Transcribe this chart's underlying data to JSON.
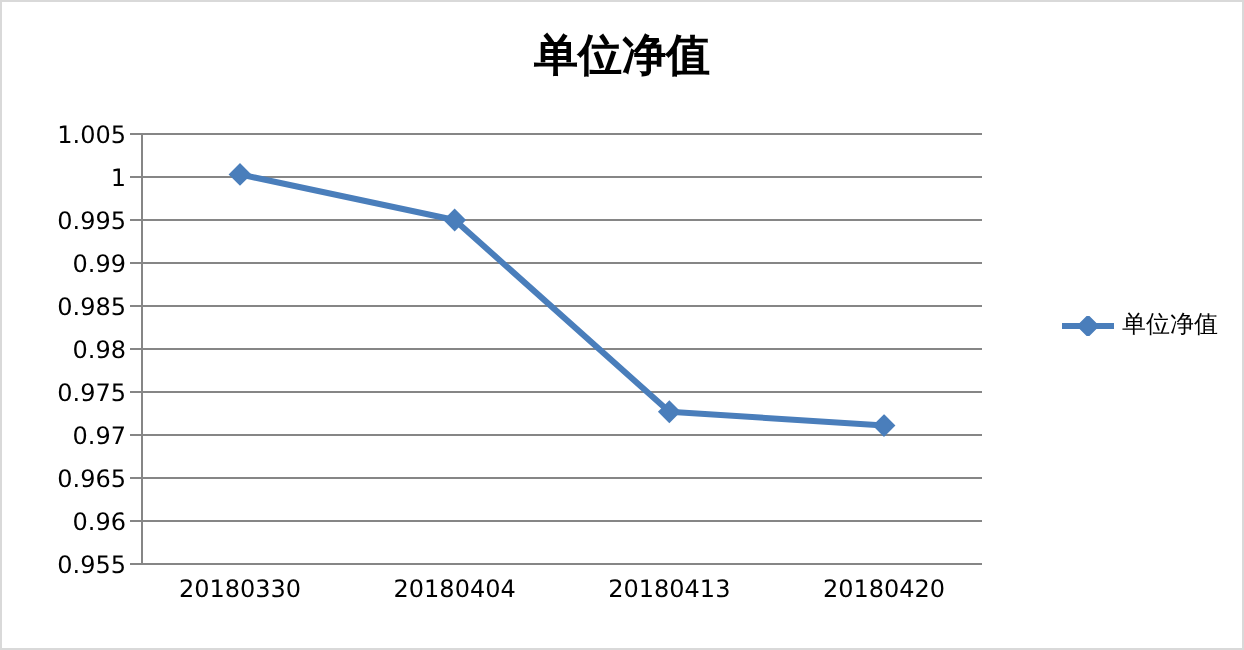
{
  "chart_data": {
    "type": "line",
    "title": "单位净值",
    "categories": [
      "20180330",
      "20180404",
      "20180413",
      "20180420"
    ],
    "series": [
      {
        "name": "单位净值",
        "color": "#4a7ebb",
        "values": [
          1.0003,
          0.995,
          0.9727,
          0.9711
        ]
      }
    ],
    "ylim": [
      0.955,
      1.005
    ],
    "yticks": [
      0.955,
      0.96,
      0.965,
      0.97,
      0.975,
      0.98,
      0.985,
      0.99,
      0.995,
      1,
      1.005
    ],
    "grid": "y",
    "legend": "right",
    "marker": "diamond",
    "line_style": "solid"
  }
}
